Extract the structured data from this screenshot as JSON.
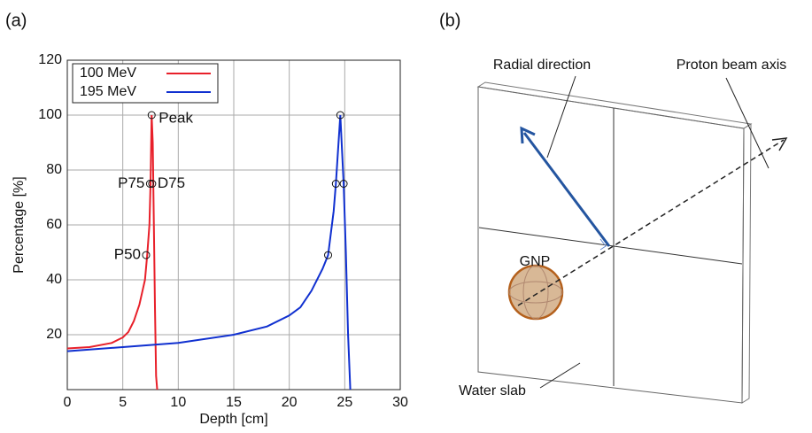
{
  "chart_data": {
    "type": "line",
    "panel_label": "(a)",
    "xlabel": "Depth [cm]",
    "ylabel": "Percentage [%]",
    "xlim": [
      0,
      30
    ],
    "ylim": [
      0,
      120
    ],
    "xticks": [
      0,
      5,
      10,
      15,
      20,
      25,
      30
    ],
    "yticks": [
      20,
      40,
      60,
      80,
      100,
      120
    ],
    "grid": true,
    "legend": "upper left",
    "series": [
      {
        "name": "100 MeV",
        "color": "#e8202a",
        "x": [
          0,
          2,
          4,
          5,
          5.5,
          6,
          6.5,
          7,
          7.2,
          7.4,
          7.5,
          7.6,
          7.7,
          7.8,
          7.9,
          8.0,
          8.1
        ],
        "values": [
          15,
          15.5,
          17,
          19,
          21,
          25,
          31,
          40,
          49,
          60,
          75,
          100,
          90,
          60,
          30,
          5,
          0
        ]
      },
      {
        "name": "195 MeV",
        "color": "#1030d0",
        "x": [
          0,
          5,
          10,
          15,
          18,
          20,
          21,
          22,
          23,
          23.5,
          24,
          24.2,
          24.6,
          24.9,
          25.1,
          25.3,
          25.5
        ],
        "values": [
          14,
          15.5,
          17,
          20,
          23,
          27,
          30,
          36,
          44,
          49,
          65,
          75,
          100,
          75,
          50,
          20,
          0
        ]
      }
    ],
    "markers": {
      "x": [
        7.6,
        7.45,
        7.65,
        7.1,
        24.6,
        24.2,
        24.9,
        23.5
      ],
      "y": [
        100,
        75,
        75,
        49,
        100,
        75,
        75,
        49
      ]
    },
    "annotations": [
      {
        "text": "Peak",
        "x": 7.6,
        "y": 100
      },
      {
        "text": "P75",
        "x": 7.45,
        "y": 75
      },
      {
        "text": "D75",
        "x": 7.65,
        "y": 75
      },
      {
        "text": "P50",
        "x": 7.1,
        "y": 49
      }
    ]
  },
  "diagram": {
    "panel_label": "(b)",
    "radial": "Radial direction",
    "beam": "Proton beam axis",
    "particle": "GNP",
    "slab": "Water slab"
  }
}
